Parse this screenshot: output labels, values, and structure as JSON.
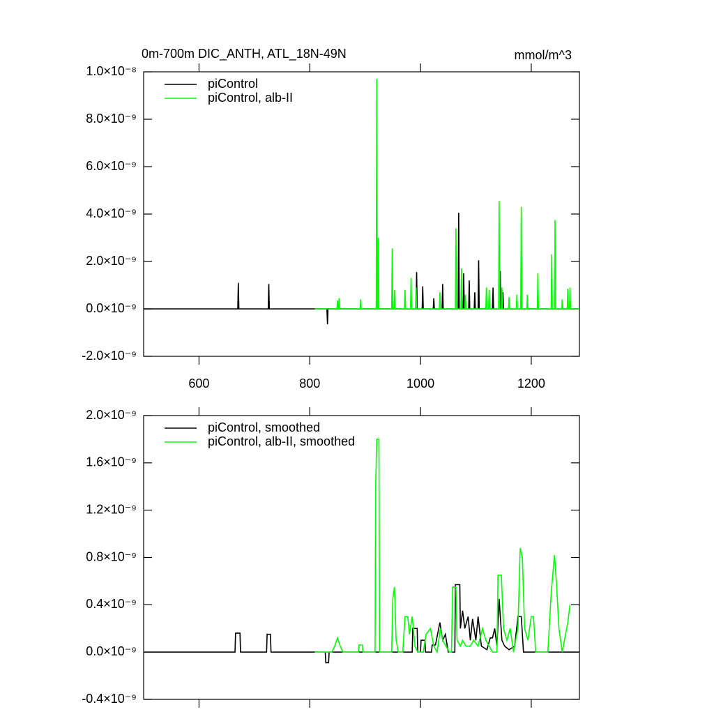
{
  "chart_data": [
    {
      "type": "line",
      "title": "0m-700m DIC_ANTH, ATL_18N-49N",
      "unit_label": "mmol/m^3",
      "xlim": [
        500,
        1287
      ],
      "xticks": [
        600,
        800,
        1000,
        1200
      ],
      "xticklabels": true,
      "ylim": [
        -2e-09,
        1e-08
      ],
      "yticks": [
        {
          "value": -2e-09,
          "label": "-2.0×10⁻⁹"
        },
        {
          "value": 0,
          "label": "0.0×10⁻⁹"
        },
        {
          "value": 2e-09,
          "label": "2.0×10⁻⁹"
        },
        {
          "value": 4e-09,
          "label": "4.0×10⁻⁹"
        },
        {
          "value": 6e-09,
          "label": "6.0×10⁻⁹"
        },
        {
          "value": 8e-09,
          "label": "8.0×10⁻⁹"
        },
        {
          "value": 1e-08,
          "label": "1.0×10⁻⁸"
        }
      ],
      "legend": "top-left",
      "series": [
        {
          "name": "piControl",
          "color": "#000000",
          "x": [
            500,
            670,
            671,
            672,
            725,
            726,
            727,
            831,
            832,
            833,
            992,
            993,
            994,
            1003,
            1004,
            1005,
            1023,
            1024,
            1025,
            1039,
            1040,
            1041,
            1068,
            1069,
            1070,
            1077,
            1078,
            1079,
            1087,
            1088,
            1089,
            1097,
            1098,
            1099,
            1104,
            1105,
            1106,
            1130,
            1131,
            1132,
            1143,
            1144,
            1145,
            1148,
            1149,
            1150,
            1181,
            1182,
            1183,
            1287
          ],
          "values": [
            0,
            0,
            1.1e-09,
            0,
            0,
            1.05e-09,
            0,
            0,
            -6.5e-10,
            0,
            0,
            1.55e-09,
            0,
            0,
            9.5e-10,
            0,
            0,
            4.5e-10,
            0,
            0,
            1.05e-09,
            0,
            0,
            4.05e-09,
            0,
            0,
            1.5e-09,
            0,
            0,
            1.2e-09,
            0,
            0,
            7e-10,
            0,
            0,
            2.05e-09,
            0,
            0,
            9e-10,
            0,
            0,
            1.6e-09,
            0,
            0,
            7e-10,
            0,
            0,
            9e-10,
            0,
            0
          ]
        },
        {
          "name": "piControl, alb-II",
          "color": "#00ff00",
          "x": [
            809,
            849,
            850,
            851,
            852,
            853,
            854,
            891,
            892,
            893,
            920,
            921,
            922,
            923,
            924,
            925,
            948,
            949,
            950,
            952,
            953,
            954,
            971,
            972,
            973,
            982,
            983,
            984,
            991,
            992,
            993,
            1034,
            1035,
            1036,
            1063,
            1064,
            1065,
            1073,
            1074,
            1075,
            1080,
            1081,
            1082,
            1118,
            1119,
            1120,
            1123,
            1124,
            1125,
            1141,
            1142,
            1143,
            1146,
            1147,
            1148,
            1159,
            1160,
            1161,
            1173,
            1174,
            1175,
            1181,
            1182,
            1183,
            1192,
            1193,
            1194,
            1211,
            1212,
            1213,
            1236,
            1237,
            1238,
            1242,
            1243,
            1244,
            1255,
            1256,
            1257,
            1265,
            1266,
            1267,
            1269,
            1270,
            1271,
            1287
          ],
          "values": [
            0,
            0,
            3.5e-10,
            0,
            0,
            4.5e-10,
            0,
            0,
            4e-10,
            0,
            0,
            9.7e-09,
            0,
            0,
            3e-09,
            0,
            0,
            2.55e-09,
            0,
            0,
            8e-10,
            0,
            0,
            8e-10,
            0,
            0,
            1.3e-09,
            0,
            0,
            9e-10,
            0,
            0,
            7e-10,
            0,
            0,
            3.4e-09,
            0,
            0,
            1.7e-09,
            0,
            0,
            6e-10,
            0,
            0,
            9e-10,
            0,
            0,
            8e-10,
            0,
            0,
            4.55e-09,
            0,
            0,
            9e-10,
            0,
            0,
            5e-10,
            0,
            0,
            6e-10,
            0,
            0,
            4.3e-09,
            0,
            0,
            6e-10,
            0,
            0,
            1.5e-09,
            0,
            0,
            2.3e-09,
            0,
            0,
            3.75e-09,
            0,
            0,
            4e-10,
            0,
            0,
            8.5e-10,
            0,
            0,
            9e-10,
            0,
            0
          ]
        }
      ]
    },
    {
      "type": "line",
      "xlim": [
        500,
        1287
      ],
      "xticks": [
        600,
        800,
        1000,
        1200
      ],
      "xticklabels": false,
      "ylim": [
        -4e-10,
        2e-09
      ],
      "yticks": [
        {
          "value": -4e-10,
          "label": "-0.4×10⁻⁹"
        },
        {
          "value": 0,
          "label": "0.0×10⁻⁹"
        },
        {
          "value": 4e-10,
          "label": "0.4×10⁻⁹"
        },
        {
          "value": 8e-10,
          "label": "0.8×10⁻⁹"
        },
        {
          "value": 1.2e-09,
          "label": "1.2×10⁻⁹"
        },
        {
          "value": 1.6e-09,
          "label": "1.6×10⁻⁹"
        },
        {
          "value": 2e-09,
          "label": "2.0×10⁻⁹"
        }
      ],
      "legend": "top-left",
      "series": [
        {
          "name": "piControl, smoothed",
          "color": "#000000",
          "x": [
            500,
            665,
            666,
            674,
            675,
            722,
            723,
            729,
            730,
            828,
            829,
            834,
            835,
            985,
            986,
            994,
            995,
            1000,
            1001,
            1008,
            1009,
            1020,
            1021,
            1027,
            1035,
            1040,
            1045,
            1050,
            1062,
            1063,
            1071,
            1072,
            1076,
            1080,
            1086,
            1090,
            1094,
            1100,
            1104,
            1110,
            1120,
            1126,
            1130,
            1134,
            1138,
            1142,
            1147,
            1152,
            1160,
            1170,
            1176,
            1182,
            1186,
            1287
          ],
          "values": [
            0,
            0,
            1.6e-10,
            1.6e-10,
            0,
            0,
            1.5e-10,
            1.5e-10,
            0,
            0,
            -9e-11,
            -9e-11,
            0,
            0,
            2e-10,
            2e-10,
            0,
            0,
            1e-10,
            1e-10,
            0,
            0,
            6e-11,
            6e-11,
            2.5e-10,
            1e-10,
            1.5e-10,
            0,
            0,
            5.7e-10,
            5.7e-10,
            2e-10,
            3.5e-10,
            2e-10,
            3e-10,
            1e-10,
            2.8e-10,
            1e-10,
            3e-10,
            5e-11,
            2e-11,
            1.2e-10,
            1.2e-10,
            2e-10,
            5e-11,
            4.5e-10,
            1e-10,
            5e-11,
            2e-11,
            5e-11,
            3e-10,
            3e-10,
            0,
            0
          ]
        },
        {
          "name": "piControl, alb-II, smoothed",
          "color": "#00ff00",
          "x": [
            809,
            840,
            845,
            850,
            855,
            860,
            888,
            889,
            895,
            896,
            918,
            919,
            921,
            925,
            926,
            948,
            950,
            953,
            956,
            960,
            968,
            972,
            977,
            980,
            985,
            990,
            995,
            1005,
            1010,
            1018,
            1024,
            1030,
            1036,
            1040,
            1046,
            1052,
            1056,
            1058,
            1064,
            1066,
            1072,
            1076,
            1082,
            1090,
            1096,
            1104,
            1112,
            1118,
            1124,
            1130,
            1138,
            1140,
            1146,
            1150,
            1156,
            1162,
            1168,
            1176,
            1180,
            1184,
            1188,
            1194,
            1200,
            1204,
            1208,
            1230,
            1236,
            1242,
            1246,
            1250,
            1256,
            1262,
            1266,
            1270
          ],
          "values": [
            0,
            0,
            5e-11,
            1.2e-10,
            5e-11,
            0,
            0,
            6e-11,
            6e-11,
            0,
            0,
            1.4e-09,
            1.8e-09,
            1.8e-09,
            0,
            0,
            4.5e-10,
            5.5e-10,
            1e-10,
            0,
            0,
            3e-10,
            3e-10,
            1.5e-10,
            3e-10,
            5e-11,
            0,
            0,
            1.5e-10,
            2e-10,
            5e-11,
            0,
            2e-10,
            1e-10,
            5e-11,
            0,
            0,
            5.5e-10,
            5.5e-10,
            1e-10,
            5e-11,
            1e-10,
            5e-11,
            5e-11,
            1e-10,
            5e-11,
            2e-10,
            1e-10,
            5e-11,
            0,
            0,
            6.5e-10,
            6.5e-10,
            2e-10,
            1e-10,
            2e-10,
            0,
            2e-10,
            8.8e-10,
            8e-10,
            2e-10,
            1e-10,
            3e-10,
            3e-10,
            0,
            0,
            5e-10,
            8.2e-10,
            5.5e-10,
            2e-10,
            0,
            1.5e-10,
            2.5e-10,
            4e-10
          ]
        }
      ]
    }
  ]
}
